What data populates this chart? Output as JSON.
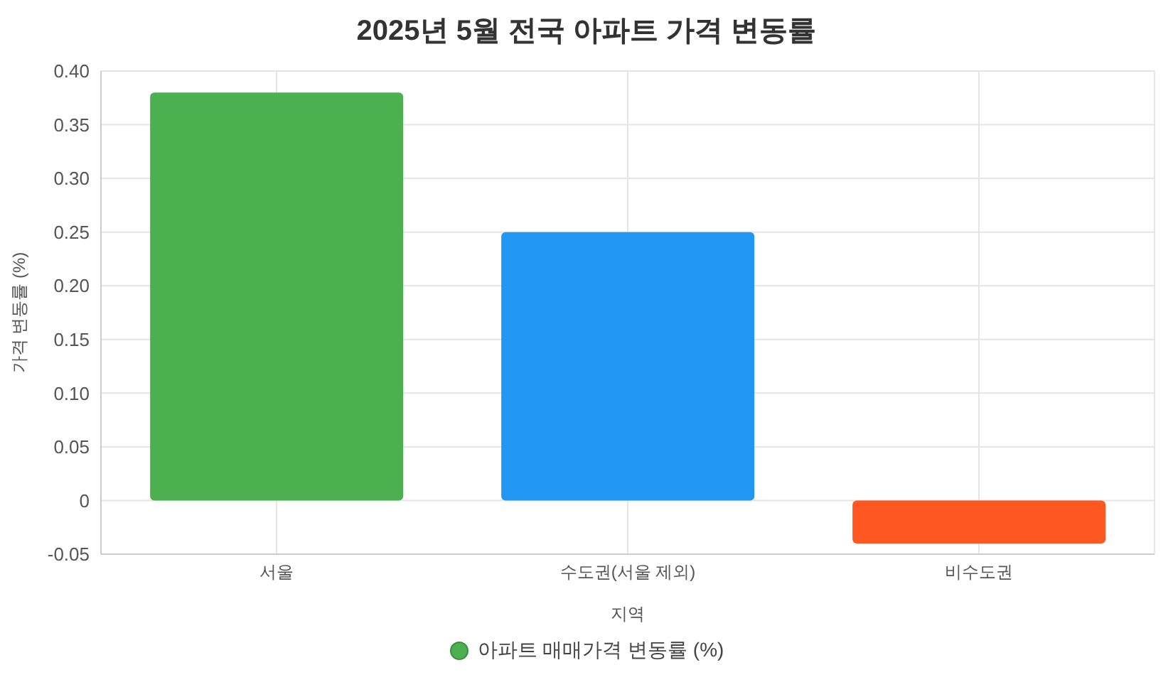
{
  "chart_data": {
    "type": "bar",
    "title": "2025년 5월 전국 아파트 가격 변동률",
    "xlabel": "지역",
    "ylabel": "가격 변동률 (%)",
    "categories": [
      "서울",
      "수도권(서울 제외)",
      "비수도권"
    ],
    "series": [
      {
        "name": "아파트 매매가격 변동률 (%)",
        "color": "#4caf50",
        "colors": [
          "#4caf50",
          "#2196f3",
          "#ff5722"
        ],
        "values": [
          0.38,
          0.25,
          -0.04
        ]
      }
    ],
    "ylim": [
      -0.05,
      0.4
    ],
    "yticks": [
      -0.05,
      0,
      0.05,
      {
        "value": 0.1,
        "label": "0.10"
      },
      0.15,
      {
        "value": 0.2,
        "label": "0.20"
      },
      0.25,
      {
        "value": 0.3,
        "label": "0.30"
      },
      0.35,
      {
        "value": 0.4,
        "label": "0.40"
      }
    ],
    "grid": true,
    "legend": "bottom"
  }
}
